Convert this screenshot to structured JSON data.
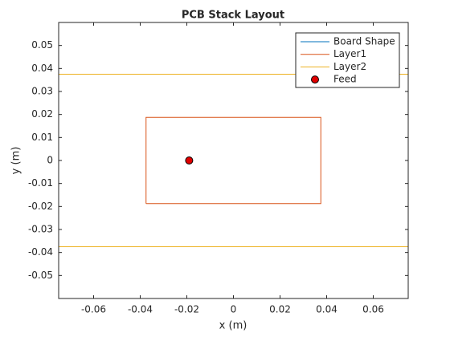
{
  "chart_data": {
    "type": "line",
    "title": "PCB Stack Layout",
    "x_label": "x (m)",
    "y_label": "y (m)",
    "xlim": [
      -0.075,
      0.075
    ],
    "ylim": [
      -0.06,
      0.06
    ],
    "xticks": [
      -0.06,
      -0.04,
      -0.02,
      0,
      0.02,
      0.04,
      0.06
    ],
    "yticks": [
      -0.05,
      -0.04,
      -0.03,
      -0.02,
      -0.01,
      0,
      0.01,
      0.02,
      0.03,
      0.04,
      0.05
    ],
    "legend": "upper right",
    "series": [
      {
        "name": "Board Shape",
        "color": "#0072bd",
        "marker": "none",
        "x": [
          -0.075,
          0.075,
          0.075,
          -0.075,
          -0.075
        ],
        "values": [
          -0.0375,
          -0.0375,
          0.0375,
          0.0375,
          -0.0375
        ]
      },
      {
        "name": "Layer1",
        "color": "#d95319",
        "marker": "none",
        "x": [
          -0.0375,
          0.0375,
          0.0375,
          -0.0375,
          -0.0375
        ],
        "values": [
          -0.01875,
          -0.01875,
          0.01875,
          0.01875,
          -0.01875
        ]
      },
      {
        "name": "Layer2",
        "color": "#edb120",
        "marker": "none",
        "x": [
          -0.075,
          0.075,
          0.075,
          -0.075,
          -0.075
        ],
        "values": [
          -0.0375,
          -0.0375,
          0.0375,
          0.0375,
          -0.0375
        ]
      },
      {
        "name": "Feed",
        "color": "#e00000",
        "marker": "circle",
        "x": [
          -0.019
        ],
        "values": [
          0
        ]
      }
    ]
  }
}
